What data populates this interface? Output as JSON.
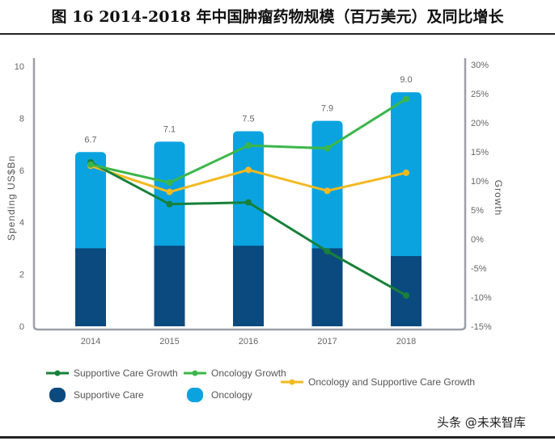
{
  "title": "图 16 2014-2018 年中国肿瘤药物规模（百万美元）及同比增长",
  "watermark": "头条 @未来智库",
  "chart_data": {
    "type": "bar",
    "stacked": true,
    "categories": [
      "2014",
      "2015",
      "2016",
      "2017",
      "2018"
    ],
    "series": [
      {
        "name": "Supportive Care",
        "type": "bar",
        "axis": "left",
        "color": "#0b4a7e",
        "values": [
          3.0,
          3.1,
          3.1,
          3.0,
          2.7
        ]
      },
      {
        "name": "Oncology",
        "type": "bar",
        "axis": "left",
        "color": "#0aa3e0",
        "values": [
          3.7,
          4.0,
          4.4,
          4.9,
          6.3
        ]
      },
      {
        "name": "Supportive Care Growth",
        "type": "line",
        "axis": "right",
        "color": "#17803a",
        "values": [
          13.2,
          6.0,
          6.3,
          -2.1,
          -9.7
        ]
      },
      {
        "name": "Oncology Growth",
        "type": "line",
        "axis": "right",
        "color": "#3cb64a",
        "values": [
          12.8,
          9.7,
          16.1,
          15.6,
          24.1
        ]
      },
      {
        "name": "Oncology and Supportive Care Growth",
        "type": "line",
        "axis": "right",
        "color": "#f4b921",
        "values": [
          12.6,
          8.1,
          11.9,
          8.3,
          11.4
        ]
      }
    ],
    "totals": [
      "6.7",
      "7.1",
      "7.5",
      "7.9",
      "9.0"
    ],
    "ylabel": "Spending US$Bn",
    "y2label": "Growth",
    "ylim": [
      0,
      10
    ],
    "yticks": [
      "0",
      "2",
      "4",
      "6",
      "8",
      "10"
    ],
    "y2lim": [
      -15,
      30
    ],
    "y2ticks": [
      "-15%",
      "-10%",
      "-5%",
      "0%",
      "5%",
      "10%",
      "15%",
      "20%",
      "25%",
      "30%"
    ],
    "legend_position": "bottom",
    "grid": false
  }
}
